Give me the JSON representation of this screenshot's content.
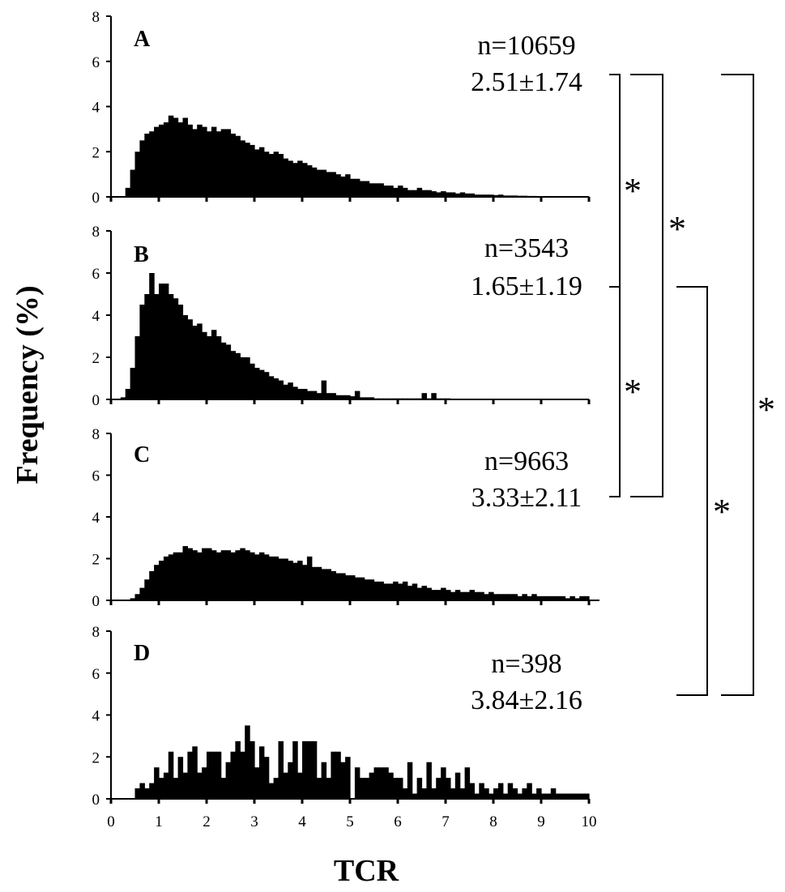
{
  "chart_data": {
    "type": "bar",
    "ylabel": "Frequency (%)",
    "xlabel": "TCR",
    "xlim": [
      0,
      10
    ],
    "ylim": [
      0,
      8
    ],
    "x_ticks": [
      0,
      1,
      2,
      3,
      4,
      5,
      6,
      7,
      8,
      9,
      10
    ],
    "y_ticks": [
      0,
      2,
      4,
      6,
      8
    ],
    "bin_width": 0.1,
    "panels": [
      {
        "label": "A",
        "n_text": "n=10659",
        "stat_text": "2.51±1.74",
        "values": [
          0,
          0,
          0,
          0.4,
          1.2,
          2.0,
          2.5,
          2.8,
          2.9,
          3.1,
          3.2,
          3.3,
          3.6,
          3.5,
          3.3,
          3.5,
          3.2,
          3.0,
          3.2,
          3.1,
          2.9,
          3.1,
          2.9,
          3.0,
          3.0,
          2.8,
          2.7,
          2.5,
          2.4,
          2.3,
          2.1,
          2.2,
          2.0,
          1.9,
          2.0,
          1.9,
          1.7,
          1.6,
          1.5,
          1.6,
          1.5,
          1.4,
          1.3,
          1.2,
          1.2,
          1.1,
          1.1,
          1.0,
          0.9,
          1.0,
          0.8,
          0.8,
          0.7,
          0.7,
          0.6,
          0.6,
          0.6,
          0.5,
          0.5,
          0.4,
          0.5,
          0.4,
          0.3,
          0.3,
          0.4,
          0.3,
          0.3,
          0.25,
          0.2,
          0.25,
          0.2,
          0.2,
          0.15,
          0.2,
          0.15,
          0.15,
          0.1,
          0.1,
          0.1,
          0.1,
          0.08,
          0.1,
          0.06,
          0.06,
          0.06,
          0.05,
          0.05,
          0.04,
          0.04,
          0.03,
          0.03,
          0.03,
          0.02,
          0.02,
          0.02,
          0.02,
          0.02,
          0.01,
          0.01,
          0.01
        ]
      },
      {
        "label": "B",
        "n_text": "n=3543",
        "stat_text": "1.65±1.19",
        "values": [
          0,
          0,
          0.1,
          0.5,
          1.5,
          3.0,
          4.5,
          5.0,
          6.0,
          5.0,
          5.5,
          5.5,
          5.0,
          4.8,
          4.5,
          4.0,
          3.8,
          3.5,
          3.6,
          3.2,
          3.0,
          3.3,
          3.0,
          2.7,
          2.6,
          2.3,
          2.2,
          2.0,
          2.0,
          1.7,
          1.5,
          1.4,
          1.3,
          1.1,
          1.0,
          0.9,
          0.7,
          0.8,
          0.6,
          0.5,
          0.5,
          0.4,
          0.4,
          0.3,
          0.9,
          0.3,
          0.3,
          0.2,
          0.2,
          0.2,
          0.15,
          0.4,
          0.1,
          0.1,
          0.1,
          0.05,
          0.05,
          0.05,
          0.05,
          0.05,
          0.05,
          0.05,
          0.05,
          0.05,
          0.05,
          0.3,
          0.05,
          0.3,
          0.05,
          0.05,
          0.05,
          0,
          0,
          0,
          0,
          0,
          0,
          0,
          0,
          0,
          0,
          0,
          0,
          0,
          0,
          0,
          0,
          0,
          0,
          0,
          0,
          0,
          0,
          0,
          0,
          0,
          0,
          0,
          0,
          0
        ]
      },
      {
        "label": "C",
        "n_text": "n=9663",
        "stat_text": "3.33±2.11",
        "values": [
          0,
          0,
          0,
          0,
          0.1,
          0.3,
          0.6,
          1.0,
          1.4,
          1.7,
          1.9,
          2.1,
          2.2,
          2.3,
          2.3,
          2.6,
          2.5,
          2.4,
          2.3,
          2.5,
          2.5,
          2.4,
          2.3,
          2.4,
          2.4,
          2.3,
          2.4,
          2.5,
          2.4,
          2.3,
          2.2,
          2.3,
          2.2,
          2.1,
          2.1,
          2.0,
          2.0,
          1.9,
          1.8,
          1.9,
          1.7,
          2.1,
          1.6,
          1.6,
          1.5,
          1.5,
          1.4,
          1.3,
          1.3,
          1.2,
          1.2,
          1.1,
          1.1,
          1.0,
          1.0,
          0.9,
          0.9,
          0.8,
          0.8,
          0.9,
          0.8,
          0.9,
          0.7,
          0.8,
          0.6,
          0.7,
          0.6,
          0.5,
          0.5,
          0.6,
          0.5,
          0.4,
          0.5,
          0.4,
          0.4,
          0.5,
          0.4,
          0.4,
          0.3,
          0.4,
          0.3,
          0.3,
          0.3,
          0.3,
          0.3,
          0.2,
          0.3,
          0.2,
          0.3,
          0.2,
          0.2,
          0.2,
          0.2,
          0.2,
          0.2,
          0.1,
          0.2,
          0.1,
          0.2,
          0.2
        ]
      },
      {
        "label": "D",
        "n_text": "n=398",
        "stat_text": "3.84±2.16",
        "values": [
          0,
          0,
          0,
          0,
          0,
          0.5,
          0.75,
          0.5,
          0.75,
          1.5,
          1.0,
          1.25,
          2.25,
          1.0,
          2.0,
          1.25,
          2.25,
          2.5,
          1.25,
          1.5,
          2.25,
          2.25,
          2.25,
          1.0,
          1.75,
          2.25,
          2.75,
          2.25,
          3.5,
          2.75,
          1.5,
          2.5,
          2.0,
          0.75,
          1.0,
          2.75,
          1.25,
          1.75,
          2.75,
          1.25,
          2.75,
          2.75,
          2.75,
          1.0,
          1.75,
          1.0,
          2.25,
          2.25,
          1.75,
          2.0,
          0.0,
          1.5,
          1.0,
          1.0,
          1.25,
          1.5,
          1.5,
          1.5,
          1.25,
          1.0,
          1.0,
          0.5,
          1.75,
          0.25,
          1.0,
          0.5,
          1.75,
          0.5,
          1.0,
          1.5,
          1.0,
          0.5,
          1.25,
          0.5,
          1.5,
          0.75,
          0.25,
          0.75,
          0.5,
          0.25,
          0.5,
          0.75,
          0.25,
          0.75,
          0.5,
          0.25,
          0.5,
          0.75,
          0.25,
          0.5,
          0.25,
          0.25,
          0.5,
          0.25,
          0.25,
          0.25,
          0.25,
          0.25,
          0.25,
          0.25
        ]
      }
    ],
    "significance": [
      {
        "between": [
          "A",
          "B"
        ],
        "mark": "*"
      },
      {
        "between": [
          "B",
          "C"
        ],
        "mark": "*"
      },
      {
        "between": [
          "A",
          "C"
        ],
        "mark": "*"
      },
      {
        "between": [
          "B",
          "D"
        ],
        "mark": "*"
      },
      {
        "between": [
          "A",
          "D"
        ],
        "mark": "*"
      }
    ]
  }
}
